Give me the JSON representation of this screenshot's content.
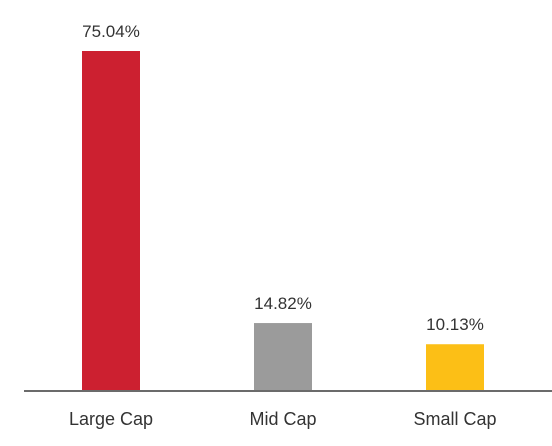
{
  "chart_data": {
    "type": "bar",
    "categories": [
      "Large Cap",
      "Mid Cap",
      "Small Cap"
    ],
    "values": [
      75.04,
      14.82,
      10.13
    ],
    "value_labels": [
      "75.04%",
      "14.82%",
      "10.13%"
    ],
    "colors": [
      "#cc2030",
      "#9b9b9b",
      "#fcbf16"
    ],
    "axis_color": "#6b6b6b",
    "title": "",
    "xlabel": "",
    "ylabel": "",
    "ylim": [
      0,
      75.04
    ],
    "grid": false,
    "legend": "none"
  }
}
